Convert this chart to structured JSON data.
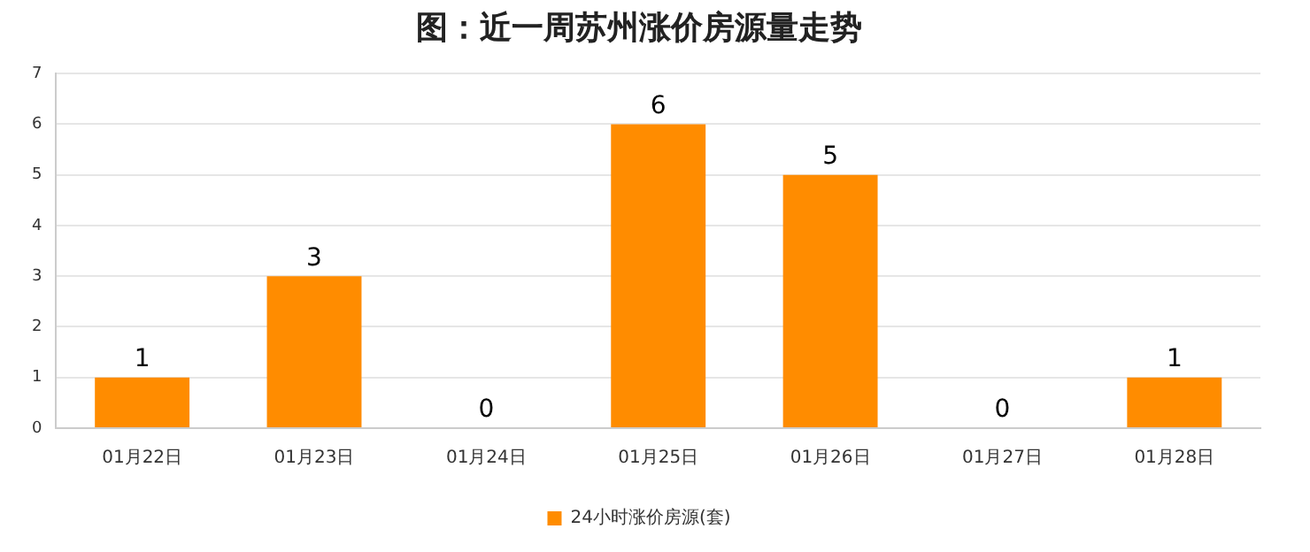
{
  "chart_data": {
    "type": "bar",
    "title": "图：近一周苏州涨价房源量走势",
    "categories": [
      "01月22日",
      "01月23日",
      "01月24日",
      "01月25日",
      "01月26日",
      "01月27日",
      "01月28日"
    ],
    "series": [
      {
        "name": "24小时涨价房源(套)",
        "color": "#ff8c00",
        "values": [
          1,
          3,
          0,
          6,
          5,
          0,
          1
        ]
      }
    ],
    "ylim": [
      0,
      7
    ],
    "yticks": [
      0,
      1,
      2,
      3,
      4,
      5,
      6,
      7
    ],
    "grid": "y",
    "legend": "bottom",
    "data_labels": true
  }
}
